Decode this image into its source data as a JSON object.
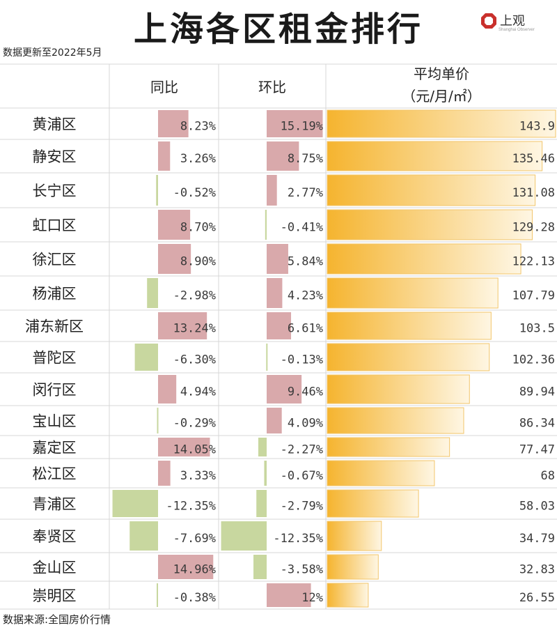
{
  "title": "上海各区租金排行",
  "subtitle": "数据更新至2022年5月",
  "source": "数据来源:全国房价行情",
  "logo": {
    "text": "上观",
    "subtext": "Shanghai Observer",
    "icon": "logo-icon"
  },
  "colors": {
    "positive": "#d9a9ab",
    "negative": "#c8d79f",
    "price_gold": "#f5b42f",
    "price_light": "#fef6e3",
    "grid": "#d7d7d7"
  },
  "chart_data": {
    "type": "table",
    "columns": [
      "",
      "同比",
      "环比",
      "平均单价",
      "（元/月/㎡）"
    ],
    "rows": [
      {
        "region": "黄浦区",
        "yoy": 8.23,
        "yoy_label": "8.23%",
        "mom": 15.19,
        "mom_label": "15.19%",
        "price": 143.9,
        "price_label": "143.9"
      },
      {
        "region": "静安区",
        "yoy": 3.26,
        "yoy_label": "3.26%",
        "mom": 8.75,
        "mom_label": "8.75%",
        "price": 135.46,
        "price_label": "135.46"
      },
      {
        "region": "长宁区",
        "yoy": -0.52,
        "yoy_label": "-0.52%",
        "mom": 2.77,
        "mom_label": "2.77%",
        "price": 131.08,
        "price_label": "131.08"
      },
      {
        "region": "虹口区",
        "yoy": 8.7,
        "yoy_label": "8.70%",
        "mom": -0.41,
        "mom_label": "-0.41%",
        "price": 129.28,
        "price_label": "129.28"
      },
      {
        "region": "徐汇区",
        "yoy": 8.9,
        "yoy_label": "8.90%",
        "mom": 5.84,
        "mom_label": "5.84%",
        "price": 122.13,
        "price_label": "122.13"
      },
      {
        "region": "杨浦区",
        "yoy": -2.98,
        "yoy_label": "-2.98%",
        "mom": 4.23,
        "mom_label": "4.23%",
        "price": 107.79,
        "price_label": "107.79"
      },
      {
        "region": "浦东新区",
        "yoy": 13.24,
        "yoy_label": "13.24%",
        "mom": 6.61,
        "mom_label": "6.61%",
        "price": 103.5,
        "price_label": "103.5"
      },
      {
        "region": "普陀区",
        "yoy": -6.3,
        "yoy_label": "-6.30%",
        "mom": -0.13,
        "mom_label": "-0.13%",
        "price": 102.36,
        "price_label": "102.36"
      },
      {
        "region": "闵行区",
        "yoy": 4.94,
        "yoy_label": "4.94%",
        "mom": 9.46,
        "mom_label": "9.46%",
        "price": 89.94,
        "price_label": "89.94"
      },
      {
        "region": "宝山区",
        "yoy": -0.29,
        "yoy_label": "-0.29%",
        "mom": 4.09,
        "mom_label": "4.09%",
        "price": 86.34,
        "price_label": "86.34"
      },
      {
        "region": "嘉定区",
        "yoy": 14.05,
        "yoy_label": "14.05%",
        "mom": -2.27,
        "mom_label": "-2.27%",
        "price": 77.47,
        "price_label": "77.47"
      },
      {
        "region": "松江区",
        "yoy": 3.33,
        "yoy_label": "3.33%",
        "mom": -0.67,
        "mom_label": "-0.67%",
        "price": 68,
        "price_label": "68"
      },
      {
        "region": "青浦区",
        "yoy": -12.35,
        "yoy_label": "-12.35%",
        "mom": -2.79,
        "mom_label": "-2.79%",
        "price": 58.03,
        "price_label": "58.03"
      },
      {
        "region": "奉贤区",
        "yoy": -7.69,
        "yoy_label": "-7.69%",
        "mom": -12.35,
        "mom_label": "-12.35%",
        "price": 34.79,
        "price_label": "34.79"
      },
      {
        "region": "金山区",
        "yoy": 14.96,
        "yoy_label": "14.96%",
        "mom": -3.58,
        "mom_label": "-3.58%",
        "price": 32.83,
        "price_label": "32.83"
      },
      {
        "region": "崇明区",
        "yoy": -0.38,
        "yoy_label": "-0.38%",
        "mom": 12,
        "mom_label": "12%",
        "price": 26.55,
        "price_label": "26.55"
      }
    ]
  }
}
